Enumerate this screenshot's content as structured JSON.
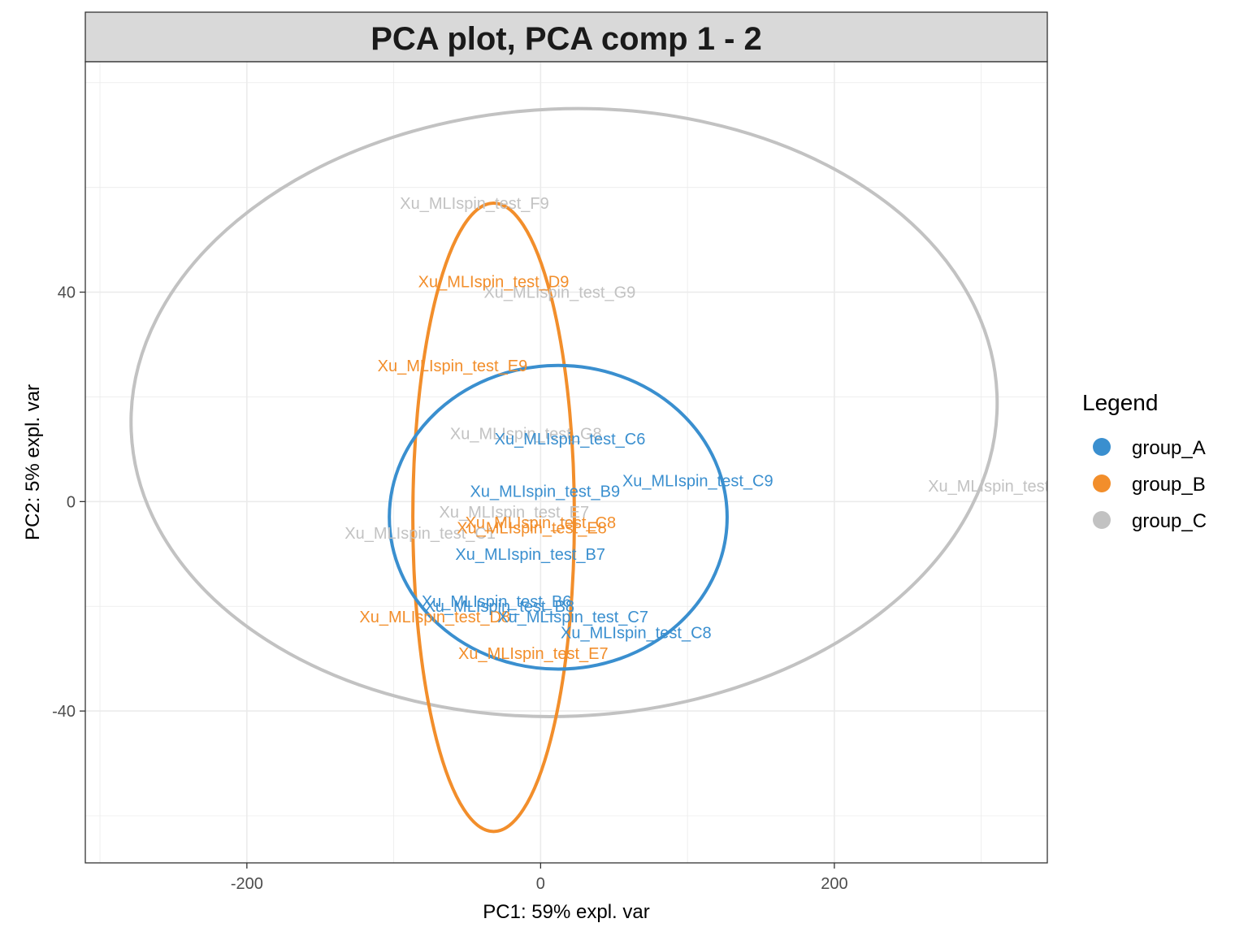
{
  "chart_data": {
    "type": "scatter",
    "title": "PCA plot, PCA comp 1 - 2",
    "xlabel": "PC1: 59% expl. var",
    "ylabel": "PC2: 5% expl. var",
    "xlim": [
      -310,
      345
    ],
    "ylim": [
      -69,
      84
    ],
    "xticks": [
      -200,
      0,
      200
    ],
    "yticks": [
      -40,
      0,
      40
    ],
    "xtick_labels": [
      "-200",
      "0",
      "200"
    ],
    "ytick_labels": [
      "-40",
      "0",
      "40"
    ],
    "grid": true,
    "legend_title": "Legend",
    "legend_position": "right",
    "groups": [
      {
        "name": "group_A",
        "color": "#3A8FCF"
      },
      {
        "name": "group_B",
        "color": "#F28E2B"
      },
      {
        "name": "group_C",
        "color": "#C2C2C2"
      }
    ],
    "points": [
      {
        "label": "Xu_MLIspin_test_F9",
        "group": "group_C",
        "x": -45,
        "y": 57
      },
      {
        "label": "Xu_MLIspin_test_G9",
        "group": "group_C",
        "x": 13,
        "y": 40
      },
      {
        "label": "Xu_MLIspin_test_G8",
        "group": "group_C",
        "x": -10,
        "y": 13
      },
      {
        "label": "Xu_MLIspin_test_E7",
        "group": "group_C",
        "x": -18,
        "y": -2
      },
      {
        "label": "Xu_MLIspin_test_C1",
        "group": "group_C",
        "x": -82,
        "y": -6
      },
      {
        "label": "Xu_MLIspin_test",
        "group": "group_C",
        "x": 305,
        "y": 3
      },
      {
        "label": "Xu_MLIspin_test_D9",
        "group": "group_B",
        "x": -32,
        "y": 42
      },
      {
        "label": "Xu_MLIspin_test_E9",
        "group": "group_B",
        "x": -60,
        "y": 26
      },
      {
        "label": "Xu_MLIspin_test_C8",
        "group": "group_B",
        "x": 0,
        "y": -4
      },
      {
        "label": "Xu_MLIspin_test_E8",
        "group": "group_B",
        "x": -6,
        "y": -5
      },
      {
        "label": "Xu_MLIspin_test_D8",
        "group": "group_B",
        "x": -72,
        "y": -22
      },
      {
        "label": "Xu_MLIspin_test_E7",
        "group": "group_B",
        "x": -5,
        "y": -29
      },
      {
        "label": "Xu_MLIspin_test_C6",
        "group": "group_A",
        "x": 20,
        "y": 12
      },
      {
        "label": "Xu_MLIspin_test_C9",
        "group": "group_A",
        "x": 107,
        "y": 4
      },
      {
        "label": "Xu_MLIspin_test_B9",
        "group": "group_A",
        "x": 3,
        "y": 2
      },
      {
        "label": "Xu_MLIspin_test_B7",
        "group": "group_A",
        "x": -7,
        "y": -10
      },
      {
        "label": "Xu_MLIspin_test_B6",
        "group": "group_A",
        "x": -30,
        "y": -19
      },
      {
        "label": "Xu_MLIspin_test_B8",
        "group": "group_A",
        "x": -28,
        "y": -20
      },
      {
        "label": "Xu_MLIspin_test_C7",
        "group": "group_A",
        "x": 22,
        "y": -22
      },
      {
        "label": "Xu_MLIspin_test_C8",
        "group": "group_A",
        "x": 65,
        "y": -25
      }
    ],
    "ellipses": [
      {
        "group": "group_C",
        "cx": 16,
        "cy": 17,
        "rx": 295,
        "ry": 58,
        "tilt_deg": -2.5
      },
      {
        "group": "group_B",
        "cx": -32,
        "cy": -3,
        "rx": 55,
        "ry": 60,
        "tilt_deg": 0
      },
      {
        "group": "group_A",
        "cx": 12,
        "cy": -3,
        "rx": 115,
        "ry": 29,
        "tilt_deg": 0
      }
    ]
  }
}
